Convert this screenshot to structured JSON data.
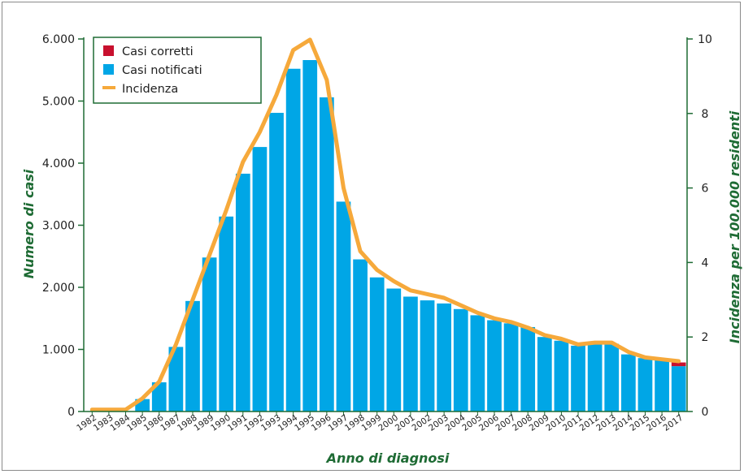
{
  "chart_data": {
    "type": "bar",
    "x": [
      "1982",
      "1983",
      "1984",
      "1985",
      "1986",
      "1987",
      "1988",
      "1989",
      "1990",
      "1991",
      "1992",
      "1993",
      "1994",
      "1995",
      "1996",
      "1997",
      "1998",
      "1999",
      "2000",
      "2001",
      "2002",
      "2003",
      "2004",
      "2005",
      "2006",
      "2007",
      "2008",
      "2009",
      "2010",
      "2011",
      "2012",
      "2013",
      "2014",
      "2015",
      "2016",
      "2017"
    ],
    "series": [
      {
        "name": "Casi notificati",
        "type": "bar",
        "axis": "left",
        "color": "#00a6e6",
        "values": [
          0,
          0,
          0,
          200,
          470,
          1040,
          1780,
          2480,
          3140,
          3830,
          4260,
          4810,
          5520,
          5660,
          5060,
          3380,
          2450,
          2160,
          1980,
          1850,
          1790,
          1740,
          1650,
          1550,
          1470,
          1420,
          1360,
          1200,
          1140,
          1060,
          1080,
          1090,
          920,
          860,
          840,
          730
        ]
      },
      {
        "name": "Casi corretti",
        "type": "bar",
        "axis": "left",
        "color": "#c8102e",
        "values": [
          0,
          0,
          0,
          0,
          0,
          0,
          0,
          0,
          0,
          0,
          0,
          0,
          0,
          0,
          0,
          0,
          0,
          0,
          0,
          0,
          0,
          0,
          0,
          0,
          0,
          0,
          0,
          0,
          0,
          0,
          0,
          0,
          0,
          0,
          10,
          60
        ]
      },
      {
        "name": "Incidenza",
        "type": "line",
        "axis": "right",
        "color": "#f6a93b",
        "values": [
          0.05,
          0.05,
          0.05,
          0.35,
          0.8,
          1.8,
          3.0,
          4.2,
          5.4,
          6.7,
          7.5,
          8.5,
          9.7,
          9.98,
          8.9,
          6.0,
          4.3,
          3.8,
          3.5,
          3.25,
          3.15,
          3.05,
          2.85,
          2.65,
          2.5,
          2.4,
          2.25,
          2.05,
          1.95,
          1.8,
          1.85,
          1.85,
          1.6,
          1.45,
          1.4,
          1.35
        ]
      }
    ],
    "xlabel": "Anno di diagnosi",
    "ylabel": "Numero di casi",
    "ylabel_right": "Incidenza per 100.000 residenti",
    "ylim": [
      0,
      6000
    ],
    "ylim_right": [
      0,
      10
    ],
    "yticks": [
      0,
      1000,
      2000,
      3000,
      4000,
      5000,
      6000
    ],
    "ytick_labels": [
      "0",
      "1.000",
      "2.000",
      "3.000",
      "4.000",
      "5.000",
      "6.000"
    ],
    "yticks_right": [
      0,
      2,
      4,
      6,
      8,
      10
    ],
    "ytick_labels_right": [
      "0",
      "2",
      "4",
      "6",
      "8",
      "10"
    ],
    "grid": false,
    "legend_position": "top-left",
    "legend": [
      "Casi corretti",
      "Casi notificati",
      "Incidenza"
    ],
    "axis_color": "#1e6b34"
  }
}
